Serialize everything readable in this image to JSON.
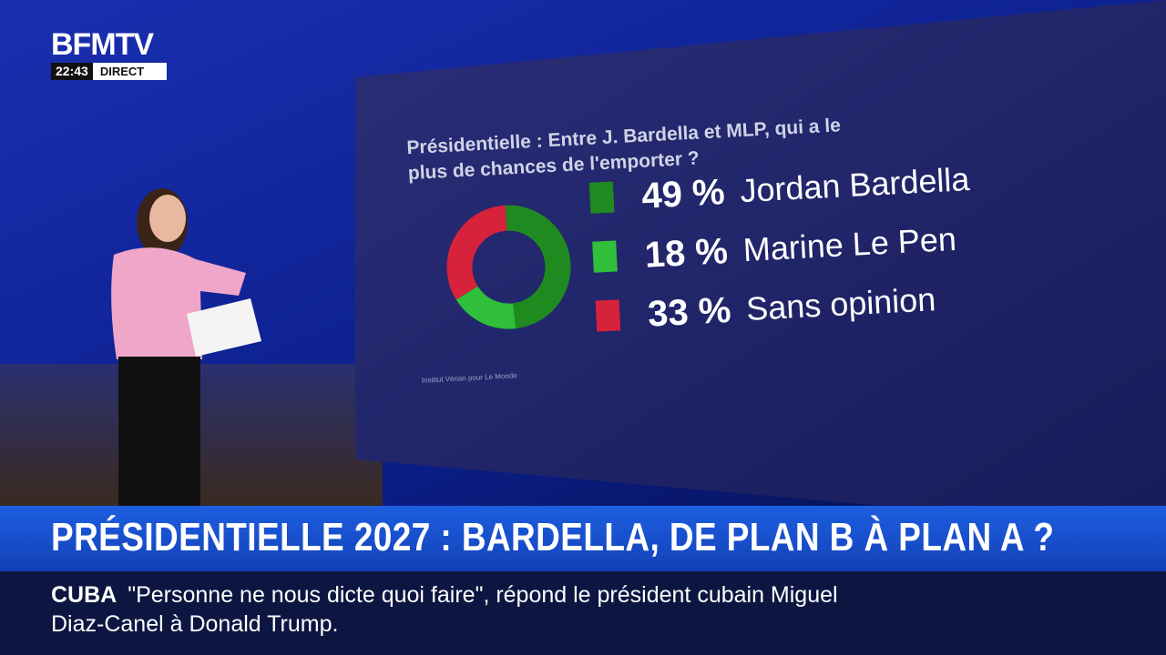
{
  "channel": {
    "logo": "BFMTV",
    "time": "22:43",
    "live": "DIRECT"
  },
  "chart_data": {
    "type": "donut",
    "title": "Présidentielle : Entre J. Bardella et MLP, qui a le plus de chances de l'emporter ?",
    "categories": [
      "Jordan Bardella",
      "Marine Le Pen",
      "Sans opinion"
    ],
    "values": [
      49,
      18,
      33
    ],
    "value_labels": [
      "49 %",
      "18 %",
      "33 %"
    ],
    "colors": [
      "#1f8a1f",
      "#2fbf3a",
      "#d6223a"
    ],
    "source": "Institut Vérian pour Le Monde"
  },
  "headline": "PRÉSIDENTIELLE 2027 : BARDELLA, DE PLAN B À PLAN A ?",
  "ticker": {
    "topic": "CUBA",
    "text": "\"Personne ne nous dicte quoi faire\", répond le président cubain Miguel Diaz-Canel à Donald Trump."
  }
}
